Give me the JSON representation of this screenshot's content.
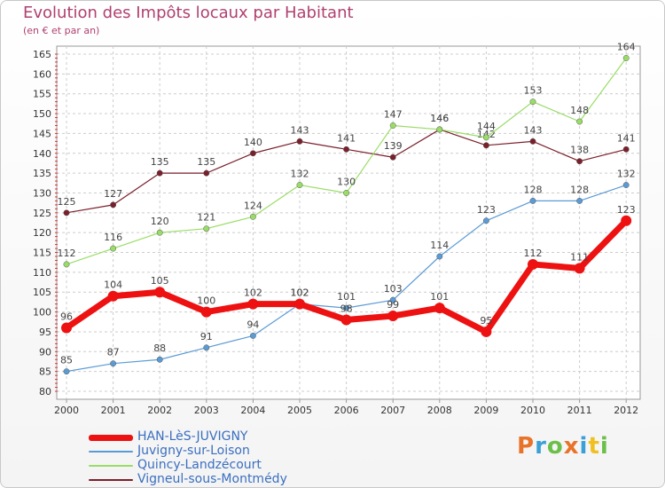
{
  "chart_data": {
    "type": "line",
    "title": "Evolution des Impôts locaux par Habitant",
    "subtitle": "(en € et par an)",
    "categories": [
      "2000",
      "2001",
      "2002",
      "2003",
      "2004",
      "2005",
      "2006",
      "2007",
      "2008",
      "2009",
      "2010",
      "2011",
      "2012"
    ],
    "ylim": [
      80,
      165
    ],
    "yticks": [
      80,
      85,
      90,
      95,
      100,
      105,
      110,
      115,
      120,
      125,
      130,
      135,
      140,
      145,
      150,
      155,
      160,
      165
    ],
    "grid": true,
    "series": [
      {
        "name": "Vigneul-sous-Montmédy",
        "color": "#7a1f2b",
        "width": 1.2,
        "values": [
          125,
          127,
          135,
          135,
          140,
          143,
          141,
          139,
          146,
          142,
          143,
          138,
          141
        ]
      },
      {
        "name": "Quincy-Landzécourt",
        "color": "#99dd66",
        "width": 1.2,
        "values": [
          112,
          116,
          120,
          121,
          124,
          132,
          130,
          147,
          146,
          144,
          153,
          148,
          164
        ]
      },
      {
        "name": "Juvigny-sur-Loison",
        "color": "#5b9bd5",
        "width": 1.2,
        "values": [
          85,
          87,
          88,
          91,
          94,
          102,
          101,
          103,
          114,
          123,
          128,
          128,
          132
        ]
      },
      {
        "name": "HAN-LèS-JUVIGNY",
        "color": "#ee1111",
        "width": 7,
        "values": [
          96,
          104,
          105,
          100,
          102,
          102,
          98,
          99,
          101,
          95,
          112,
          111,
          123
        ]
      }
    ],
    "legend": [
      {
        "name": "HAN-LèS-JUVIGNY",
        "color": "#ee1111",
        "width": 7
      },
      {
        "name": "Juvigny-sur-Loison",
        "color": "#5b9bd5",
        "width": 2
      },
      {
        "name": "Quincy-Landzécourt",
        "color": "#99dd66",
        "width": 2
      },
      {
        "name": "Vigneul-sous-Montmédy",
        "color": "#7a1f2b",
        "width": 2
      }
    ]
  },
  "brand": {
    "letters": [
      {
        "ch": "P",
        "color": "#e8742a"
      },
      {
        "ch": "r",
        "color": "#3aa0d8"
      },
      {
        "ch": "o",
        "color": "#6cc04a"
      },
      {
        "ch": "x",
        "color": "#e8742a"
      },
      {
        "ch": "i",
        "color": "#3aa0d8"
      },
      {
        "ch": "t",
        "color": "#f0c020"
      },
      {
        "ch": "i",
        "color": "#6cc04a"
      }
    ]
  }
}
